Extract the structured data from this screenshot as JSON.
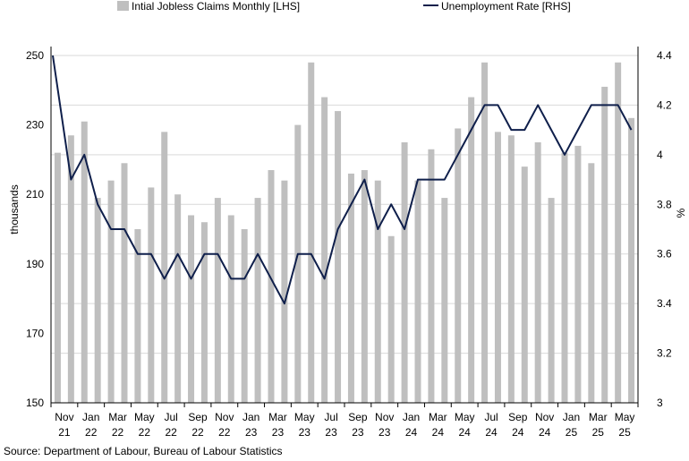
{
  "chart_data": {
    "type": "bar+line",
    "legend": {
      "placement": "top",
      "bar_label": "Intial Jobless Claims Monthly [LHS]",
      "line_label": "Unemployment Rate [RHS]"
    },
    "y_left": {
      "label": "thousands",
      "min": 150,
      "max": 250,
      "ticks": [
        "150",
        "170",
        "190",
        "210",
        "230",
        "250"
      ]
    },
    "y_right": {
      "label": "%",
      "min": 3,
      "max": 4.4,
      "ticks": [
        "3",
        "3.2",
        "3.4",
        "3.6",
        "3.8",
        "4",
        "4.2",
        "4.4"
      ]
    },
    "x_labels": [
      {
        "index": 0,
        "line1": "Nov",
        "line2": "21"
      },
      {
        "index": 2,
        "line1": "Jan",
        "line2": "22"
      },
      {
        "index": 4,
        "line1": "Mar",
        "line2": "22"
      },
      {
        "index": 6,
        "line1": "May",
        "line2": "22"
      },
      {
        "index": 8,
        "line1": "Jul",
        "line2": "22"
      },
      {
        "index": 10,
        "line1": "Sep",
        "line2": "22"
      },
      {
        "index": 12,
        "line1": "Nov",
        "line2": "22"
      },
      {
        "index": 14,
        "line1": "Jan",
        "line2": "23"
      },
      {
        "index": 16,
        "line1": "Mar",
        "line2": "23"
      },
      {
        "index": 18,
        "line1": "May",
        "line2": "23"
      },
      {
        "index": 20,
        "line1": "Jul",
        "line2": "23"
      },
      {
        "index": 22,
        "line1": "Sep",
        "line2": "23"
      },
      {
        "index": 24,
        "line1": "Nov",
        "line2": "23"
      },
      {
        "index": 26,
        "line1": "Jan",
        "line2": "24"
      },
      {
        "index": 28,
        "line1": "Mar",
        "line2": "24"
      },
      {
        "index": 30,
        "line1": "May",
        "line2": "24"
      },
      {
        "index": 32,
        "line1": "Jul",
        "line2": "24"
      },
      {
        "index": 34,
        "line1": "Sep",
        "line2": "24"
      },
      {
        "index": 36,
        "line1": "Nov",
        "line2": "24"
      },
      {
        "index": 38,
        "line1": "Jan",
        "line2": "25"
      },
      {
        "index": 40,
        "line1": "Mar",
        "line2": "25"
      },
      {
        "index": 42,
        "line1": "May",
        "line2": "25"
      }
    ],
    "bars": [
      222,
      227,
      231,
      209,
      214,
      219,
      200,
      212,
      228,
      210,
      204,
      202,
      209,
      204,
      200,
      209,
      217,
      214,
      230,
      248,
      238,
      234,
      216,
      217,
      214,
      198,
      225,
      214,
      223,
      209,
      229,
      238,
      248,
      228,
      227,
      218,
      225,
      209,
      222,
      224,
      219,
      241,
      248,
      232
    ],
    "line": [
      4.4,
      3.9,
      4.0,
      3.8,
      3.7,
      3.7,
      3.6,
      3.6,
      3.5,
      3.6,
      3.5,
      3.6,
      3.6,
      3.5,
      3.5,
      3.6,
      3.5,
      3.4,
      3.6,
      3.6,
      3.5,
      3.7,
      3.8,
      3.9,
      3.7,
      3.8,
      3.7,
      3.9,
      3.9,
      3.9,
      4.0,
      4.1,
      4.2,
      4.2,
      4.1,
      4.1,
      4.2,
      4.1,
      4.0,
      4.1,
      4.2,
      4.2,
      4.2,
      4.1
    ],
    "colors": {
      "bar": "#bfbfbf",
      "line": "#0f1f4b",
      "grid": "#d9d9d9",
      "axis": "#000000"
    },
    "grid": true
  },
  "source": "Source: Department of Labour, Bureau of Labour Statistics"
}
